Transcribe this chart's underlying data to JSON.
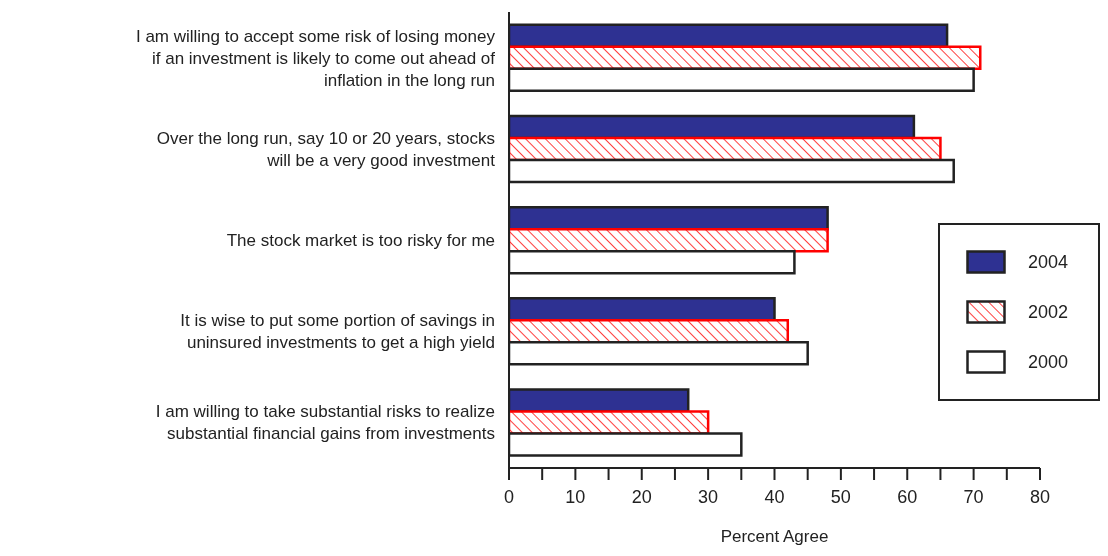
{
  "chart_data": {
    "type": "bar",
    "orientation": "horizontal",
    "xlabel": "Percent Agree",
    "categories": [
      "I am willing to accept some risk of losing money if an investment is likely to come out ahead of inflation in the long run",
      "Over the long run, say 10 or 20 years, stocks will be a very good investment",
      "The stock market is too risky for me",
      "It is wise to put some portion of savings in uninsured investments to get a high yield",
      "I am willing to take substantial risks to realize substantial financial gains from investments"
    ],
    "series": [
      {
        "name": "2004",
        "color": "#2e3192",
        "values": [
          66,
          61,
          48,
          40,
          27
        ]
      },
      {
        "name": "2002",
        "color": "#ff0000",
        "values": [
          71,
          65,
          48,
          42,
          30
        ]
      },
      {
        "name": "2000",
        "color": "#ffffff",
        "values": [
          70,
          67,
          43,
          45,
          35
        ]
      }
    ],
    "xlim": [
      0,
      80
    ],
    "xticks": [
      0,
      {
        "value": 5,
        "label": null
      },
      10,
      {
        "value": 15,
        "label": null
      },
      20,
      {
        "value": 25,
        "label": null
      },
      30,
      {
        "value": 35,
        "label": null
      },
      40,
      {
        "value": 45,
        "label": null
      },
      50,
      {
        "value": 55,
        "label": null
      },
      60,
      {
        "value": 65,
        "label": null
      },
      70,
      {
        "value": 75,
        "label": null
      },
      80
    ],
    "legend": "right",
    "grid": false
  }
}
